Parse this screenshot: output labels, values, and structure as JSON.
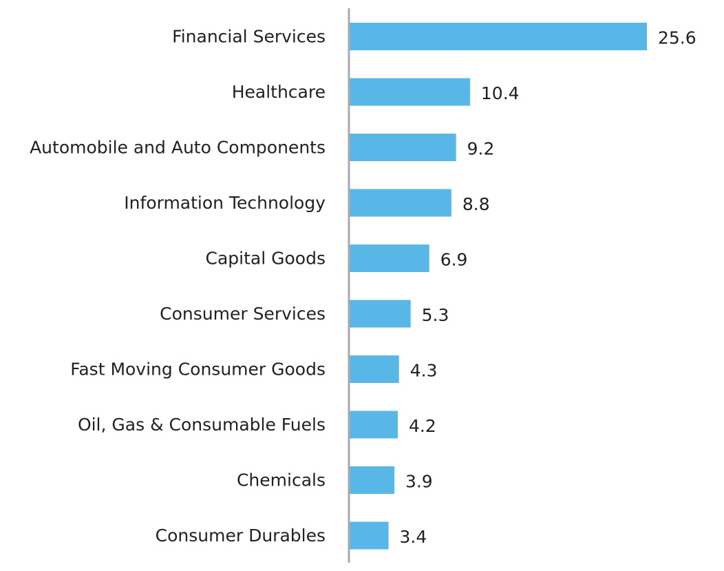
{
  "chart_data": {
    "type": "bar",
    "orientation": "horizontal",
    "categories": [
      "Financial Services",
      "Healthcare",
      "Automobile and Auto Components",
      "Information Technology",
      "Capital Goods",
      "Consumer Services",
      "Fast Moving Consumer Goods",
      "Oil, Gas & Consumable Fuels",
      "Chemicals",
      "Consumer Durables"
    ],
    "values": [
      25.6,
      10.4,
      9.2,
      8.8,
      6.9,
      5.3,
      4.3,
      4.2,
      3.9,
      3.4
    ],
    "value_labels": [
      "25.6",
      "10.4",
      "9.2",
      "8.8",
      "6.9",
      "5.3",
      "4.3",
      "4.2",
      "3.9",
      "3.4"
    ],
    "xlim": [
      0,
      25.6
    ],
    "grid": false,
    "legend": "none",
    "colors": {
      "bar": "#58b7e6",
      "axis": "#a7a9ac",
      "text": "#231f20"
    }
  }
}
